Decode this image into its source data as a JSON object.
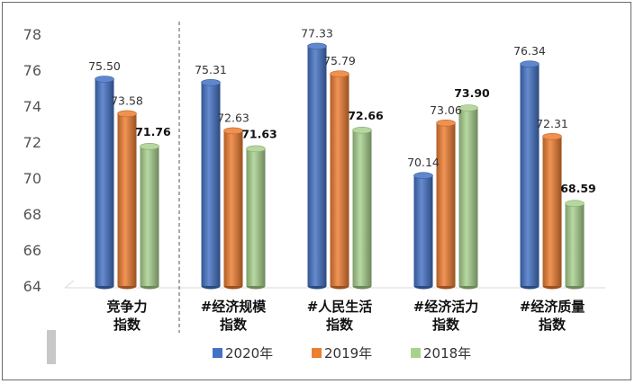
{
  "chart_data": {
    "type": "bar",
    "categories": [
      [
        "竞争力",
        "指数"
      ],
      [
        "#经济规模",
        "指数"
      ],
      [
        "#人民生活",
        "指数"
      ],
      [
        "#经济活力",
        "指数"
      ],
      [
        "#经济质量",
        "指数"
      ]
    ],
    "series": [
      {
        "name": "2020年",
        "values": [
          75.5,
          75.31,
          77.33,
          70.14,
          76.34
        ],
        "color": "#4472c4",
        "bold_labels": [
          false,
          false,
          false,
          false,
          false
        ]
      },
      {
        "name": "2019年",
        "values": [
          73.58,
          72.63,
          75.79,
          73.06,
          72.31
        ],
        "color": "#ed7d31",
        "bold_labels": [
          false,
          false,
          false,
          false,
          false
        ]
      },
      {
        "name": "2018年",
        "values": [
          71.76,
          71.63,
          72.66,
          73.9,
          68.59
        ],
        "color": "#a9d18e",
        "bold_labels": [
          true,
          true,
          true,
          true,
          true
        ]
      }
    ],
    "ylim": [
      64,
      78
    ],
    "yticks": [
      64,
      66,
      68,
      70,
      72,
      74,
      76,
      78
    ],
    "grid": false,
    "legend_position": "bottom",
    "separator_after_category": 0,
    "title": "",
    "xlabel": "",
    "ylabel": ""
  }
}
